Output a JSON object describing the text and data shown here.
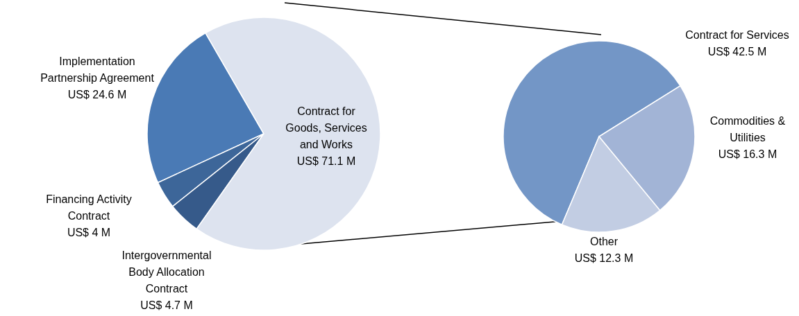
{
  "chart_data": [
    {
      "type": "pie",
      "categories": [
        "Implementation Partnership Agreement",
        "Financing Activity Contract",
        "Intergovernmental Body Allocation Contract",
        "Contract for Goods, Services and Works"
      ],
      "values": [
        24.6,
        4,
        4.7,
        71.1
      ],
      "colors": [
        "#4a7ab5",
        "#3d6699",
        "#365a8a",
        "#dde3ef"
      ],
      "value_labels": [
        "US$ 24.6 M",
        "US$ 4 M",
        "US$ 4.7 M",
        "US$ 71.1 M"
      ]
    },
    {
      "type": "pie",
      "categories": [
        "Contract for Services",
        "Other",
        "Commodities & Utilities"
      ],
      "values": [
        42.5,
        12.3,
        16.3
      ],
      "colors": [
        "#7396c6",
        "#c2cde3",
        "#a2b4d6"
      ],
      "value_labels": [
        "US$ 42.5 M",
        "US$ 12.3 M",
        "US$ 16.3 M"
      ]
    }
  ]
}
